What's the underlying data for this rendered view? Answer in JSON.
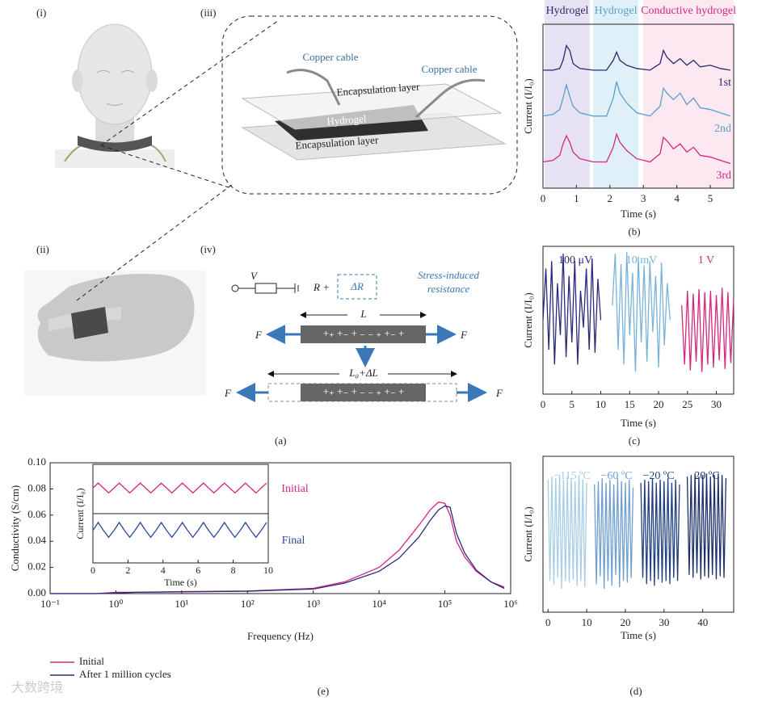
{
  "panel_labels": {
    "i": "(i)",
    "ii": "(ii)",
    "iii": "(iii)",
    "iv": "(iv)",
    "a": "(a)",
    "b": "(b)",
    "c": "(c)",
    "d": "(d)",
    "e": "(e)"
  },
  "illustration": {
    "copper_cable_left": "Copper cable",
    "copper_cable_right": "Copper cable",
    "encapsulation_top": "Encapsulation layer",
    "hydrogel": "Hydrogel",
    "encapsulation_bottom": "Encapsulation layer"
  },
  "circuit": {
    "voltage": "V",
    "resistance": "R +",
    "delta_r": "ΔR",
    "stress_label": [
      "Stress-induced",
      "resistance"
    ],
    "length": "L",
    "stretched_length": "L₀+ΔL",
    "force": [
      "F",
      "F",
      "F",
      "F"
    ],
    "charges": [
      "+₊ +₋ + ₋ ₋ ₊ +₋ +",
      "+₊ +₋ + ₋ ₋ ₊ +₋ +"
    ]
  },
  "watermark": "大数跨境",
  "chart_data": [
    {
      "type": "line",
      "x_label": "Time (s)",
      "y_label": "Current (I/I₀)",
      "xlim": [
        0,
        5.7
      ],
      "ylim": [
        0,
        10
      ],
      "xticks": [
        0,
        1,
        2,
        3,
        4,
        5
      ],
      "regions": [
        {
          "name": "Hydrogel",
          "color": "#2a2a6e",
          "fill": "#e7e2f3",
          "x": [
            0.05,
            1.4
          ]
        },
        {
          "name": "Hydrogel",
          "color": "#5aa0c8",
          "fill": "#dff0f8",
          "x": [
            1.5,
            2.85
          ]
        },
        {
          "name": "Conductive hydrogel",
          "color": "#d6267f",
          "fill": "#fce8f1",
          "x": [
            3.0,
            5.7
          ]
        }
      ],
      "x": [
        0,
        0.3,
        0.5,
        0.6,
        0.7,
        0.8,
        0.9,
        1.1,
        1.5,
        1.9,
        2.1,
        2.2,
        2.3,
        2.5,
        2.8,
        3.2,
        3.5,
        3.6,
        3.7,
        3.9,
        4.1,
        4.3,
        4.5,
        4.7,
        5.0,
        5.3,
        5.6
      ],
      "series": [
        {
          "name": "1st",
          "color": "#2a2a6e",
          "values": [
            7.2,
            7.2,
            7.3,
            7.8,
            8.7,
            8.4,
            7.6,
            7.3,
            7.2,
            7.2,
            7.8,
            8.3,
            7.8,
            7.5,
            7.3,
            7.2,
            7.6,
            8.4,
            8.0,
            7.6,
            7.9,
            7.5,
            7.8,
            7.4,
            7.5,
            7.3,
            7.2
          ]
        },
        {
          "name": "2nd",
          "color": "#5aa0c8",
          "values": [
            4.4,
            4.5,
            4.8,
            5.5,
            6.3,
            5.6,
            5.0,
            4.6,
            4.4,
            4.4,
            5.5,
            6.5,
            5.8,
            5.2,
            4.6,
            4.4,
            5.0,
            6.1,
            5.8,
            5.4,
            5.8,
            5.1,
            5.5,
            4.9,
            4.8,
            4.6,
            4.4
          ]
        },
        {
          "name": "3rd",
          "color": "#d6267f",
          "values": [
            1.6,
            1.7,
            2.0,
            2.7,
            3.2,
            2.8,
            2.2,
            1.8,
            1.6,
            1.6,
            2.5,
            3.3,
            2.8,
            2.3,
            1.8,
            1.6,
            2.1,
            3.1,
            2.9,
            2.4,
            2.7,
            2.2,
            2.5,
            2.0,
            1.9,
            1.7,
            1.5
          ]
        }
      ]
    },
    {
      "type": "line",
      "x_label": "Time (s)",
      "y_label": "Current (I/I₀)",
      "xlim": [
        0,
        33
      ],
      "ylim": [
        0,
        10
      ],
      "xticks": [
        0,
        5,
        10,
        15,
        20,
        25,
        30
      ],
      "series": [
        {
          "name": "100 μV",
          "color": "#2b2a7a",
          "x": [
            0,
            0.5,
            1,
            1.5,
            2,
            2.5,
            3,
            3.5,
            4,
            4.5,
            5,
            5.5,
            6,
            6.5,
            7,
            7.5,
            8,
            8.5,
            9,
            9.5,
            10
          ],
          "values": [
            5,
            8.5,
            3,
            9,
            2,
            7.5,
            4,
            9.5,
            2.5,
            8,
            3.5,
            9,
            2,
            7,
            4.5,
            8.5,
            3,
            9.2,
            2.8,
            7.8,
            5
          ]
        },
        {
          "name": "10 mV",
          "color": "#7ab3d9",
          "x": [
            12,
            12.5,
            13,
            13.5,
            14,
            14.5,
            15,
            15.5,
            16,
            16.5,
            17,
            17.5,
            18,
            18.5,
            19,
            19.5,
            20,
            20.5,
            21,
            21.5,
            22
          ],
          "values": [
            6,
            9.5,
            3,
            8.8,
            2,
            9.6,
            4,
            8.2,
            1.5,
            9.3,
            3.5,
            8.7,
            2.2,
            9,
            4.2,
            8,
            1.8,
            8.9,
            3.3,
            7.5,
            5
          ]
        },
        {
          "name": "1 V",
          "color": "#d6267f",
          "x": [
            24,
            24.5,
            25,
            25.5,
            26,
            26.5,
            27,
            27.5,
            28,
            28.5,
            29,
            29.5,
            30,
            30.5,
            31,
            31.5,
            32,
            32.5,
            33
          ],
          "values": [
            6,
            2,
            7,
            1.6,
            6.8,
            2.2,
            7.1,
            1.5,
            6.9,
            2,
            7,
            1.8,
            6.7,
            2.3,
            7.2,
            1.7,
            6.9,
            2.1,
            6.5
          ]
        }
      ]
    },
    {
      "type": "line",
      "x_label": "Time (s)",
      "y_label": "Current (I/I₀)",
      "xlim": [
        -1.3,
        48
      ],
      "ylim": [
        0,
        10
      ],
      "xticks": [
        0,
        10,
        20,
        30,
        40
      ],
      "series": [
        {
          "name": "−115 ºC",
          "color": "#a8cde6",
          "x": [
            0,
            0.5,
            1,
            1.5,
            2,
            2.5,
            3,
            3.5,
            4,
            4.5,
            5,
            5.5,
            6,
            6.5,
            7,
            7.5,
            8,
            8.5,
            9,
            9.5,
            10
          ],
          "values": [
            8.5,
            2,
            8.7,
            1.8,
            8.6,
            2.2,
            8.8,
            1.5,
            8.5,
            2,
            8.7,
            1.9,
            8.6,
            2.1,
            8.4,
            1.7,
            8.8,
            2,
            8.5,
            1.6,
            8.3
          ]
        },
        {
          "name": "−60 ºC",
          "color": "#6f9fcf",
          "x": [
            12,
            12.5,
            13,
            13.5,
            14,
            14.5,
            15,
            15.5,
            16,
            16.5,
            17,
            17.5,
            18,
            18.5,
            19,
            19.5,
            20,
            20.5,
            21,
            21.5,
            22
          ],
          "values": [
            8.2,
            1.8,
            8.4,
            2.3,
            8.6,
            1.5,
            8.3,
            2,
            8.5,
            1.7,
            8.2,
            2.4,
            8.6,
            1.6,
            8.4,
            2,
            8.3,
            1.9,
            8.5,
            2.2,
            8
          ]
        },
        {
          "name": "−20 ºC",
          "color": "#1f3f7f",
          "x": [
            24,
            24.5,
            25,
            25.5,
            26,
            26.5,
            27,
            27.5,
            28,
            28.5,
            29,
            29.5,
            30,
            30.5,
            31,
            31.5,
            32,
            32.5,
            33,
            33.5,
            34
          ],
          "values": [
            8.3,
            2.2,
            8.5,
            1.8,
            8.4,
            2,
            8.6,
            1.7,
            8.3,
            2.1,
            8.5,
            1.9,
            8.4,
            2,
            8.6,
            1.8,
            8.3,
            2.2,
            8.5,
            2,
            8.2
          ]
        },
        {
          "name": "20 ºC",
          "color": "#1b2f6a",
          "x": [
            36,
            36.5,
            37,
            37.5,
            38,
            38.5,
            39,
            39.5,
            40,
            40.5,
            41,
            41.5,
            42,
            42.5,
            43,
            43.5,
            44,
            44.5,
            45,
            45.5,
            46
          ],
          "values": [
            8.7,
            2.4,
            8.8,
            2.2,
            8.9,
            2.5,
            8.7,
            2.1,
            8.8,
            2.3,
            8.9,
            2.2,
            8.7,
            2.4,
            8.8,
            2.1,
            8.9,
            2.3,
            8.8,
            2.2,
            8.6
          ]
        }
      ]
    },
    {
      "type": "line",
      "x_label": "Frequency (Hz)",
      "y_label": "Conductivity (S/cm)",
      "xscale": "log",
      "xlim": [
        0.1,
        1000000
      ],
      "ylim": [
        0,
        0.1
      ],
      "xticks": [
        {
          "value": 0.1,
          "label": "10⁻¹"
        },
        {
          "value": 1,
          "label": "10⁰"
        },
        {
          "value": 10,
          "label": "10¹"
        },
        {
          "value": 100,
          "label": "10²"
        },
        {
          "value": 1000,
          "label": "10³"
        },
        {
          "value": 10000,
          "label": "10⁴"
        },
        {
          "value": 100000,
          "label": "10⁵"
        },
        {
          "value": 1000000,
          "label": "10⁶"
        }
      ],
      "yticks": [
        {
          "value": 0,
          "label": "0.00"
        },
        {
          "value": 0.02,
          "label": "0.02"
        },
        {
          "value": 0.04,
          "label": "0.04"
        },
        {
          "value": 0.06,
          "label": "0.06"
        },
        {
          "value": 0.08,
          "label": "0.08"
        },
        {
          "value": 0.1,
          "label": "0.10"
        }
      ],
      "x": [
        0.1,
        0.5,
        1,
        2,
        10,
        100,
        1000,
        3000,
        10000,
        20000,
        40000,
        60000,
        80000,
        100000,
        120000,
        150000,
        200000,
        300000,
        500000,
        800000
      ],
      "series": [
        {
          "name": "Initial",
          "color": "#d6267f",
          "values": [
            0,
            0,
            0.001,
            0.001,
            0.0015,
            0.002,
            0.004,
            0.009,
            0.02,
            0.033,
            0.052,
            0.064,
            0.07,
            0.069,
            0.06,
            0.04,
            0.028,
            0.017,
            0.009,
            0.005
          ]
        },
        {
          "name": "After 1 million cycles",
          "color": "#2b2a7a",
          "values": [
            0,
            0,
            0.0005,
            0.001,
            0.0013,
            0.0018,
            0.0035,
            0.008,
            0.017,
            0.027,
            0.043,
            0.056,
            0.064,
            0.067,
            0.066,
            0.046,
            0.031,
            0.018,
            0.009,
            0.004
          ]
        }
      ]
    },
    {
      "type": "line",
      "x_label": "Time (s)",
      "y_label": "Current (I/I₀)",
      "xlim": [
        0,
        10
      ],
      "ylim": [
        0,
        10
      ],
      "xticks": [
        0,
        2,
        4,
        6,
        8,
        10
      ],
      "x": [
        0,
        0.3,
        0.6,
        0.9,
        1.2,
        1.5,
        1.8,
        2.1,
        2.4,
        2.7,
        3,
        3.3,
        3.6,
        3.9,
        4.2,
        4.5,
        4.8,
        5.1,
        5.4,
        5.7,
        6,
        6.3,
        6.6,
        6.9,
        7.2,
        7.5,
        7.8,
        8.1,
        8.4,
        8.7,
        9,
        9.3,
        9.6,
        9.9
      ],
      "series": [
        {
          "name": "Initial",
          "color": "#d6267f",
          "values": [
            7.6,
            8.1,
            7.6,
            7.1,
            7.6,
            8.1,
            7.6,
            7.1,
            7.6,
            8.1,
            7.6,
            7.1,
            7.6,
            8.1,
            7.6,
            7.1,
            7.6,
            8.1,
            7.6,
            7.1,
            7.6,
            8.1,
            7.6,
            7.1,
            7.6,
            8.1,
            7.6,
            7.1,
            7.6,
            8.1,
            7.6,
            7.1,
            7.6,
            8.1
          ]
        },
        {
          "name": "Final",
          "color": "#2b4a9a",
          "values": [
            3.3,
            4.1,
            3.3,
            2.6,
            3.3,
            4.1,
            3.3,
            2.6,
            3.3,
            4.1,
            3.3,
            2.6,
            3.3,
            4.1,
            3.3,
            2.6,
            3.3,
            4.1,
            3.3,
            2.6,
            3.3,
            4.1,
            3.3,
            2.6,
            3.3,
            4.1,
            3.3,
            2.6,
            3.3,
            4.1,
            3.3,
            2.6,
            3.3,
            4.1
          ]
        }
      ]
    }
  ]
}
